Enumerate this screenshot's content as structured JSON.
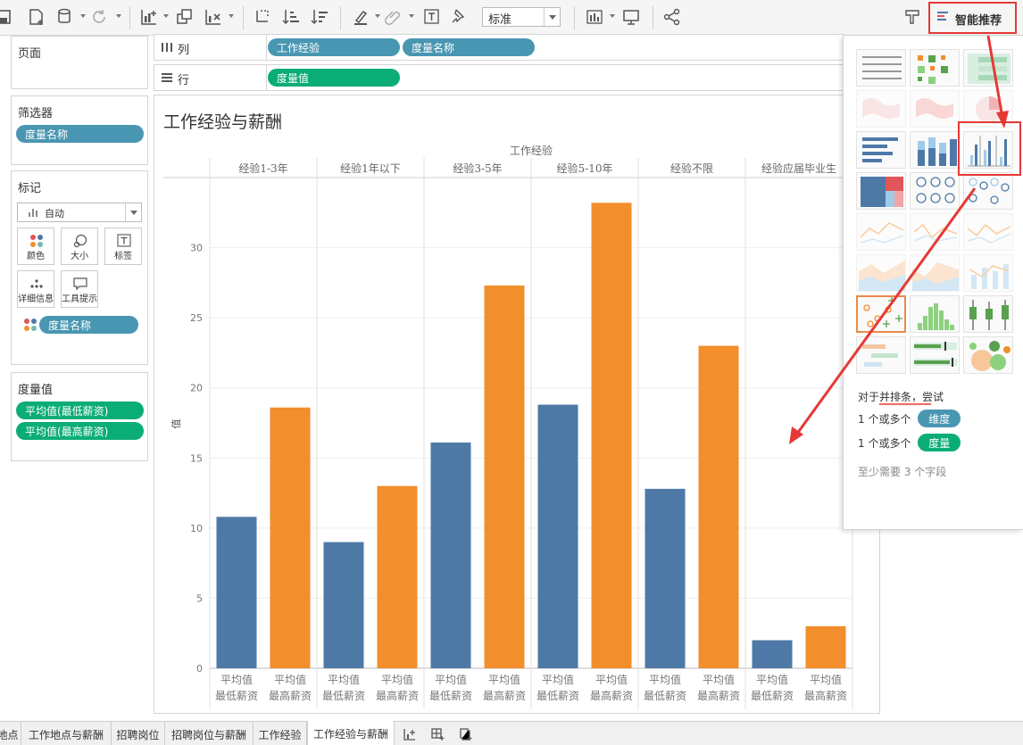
{
  "toolbar": {
    "fit_value": "标准",
    "smart_button_label": "智能推荐",
    "icons": [
      "save-icon",
      "new-datasource-icon",
      "datasource-icon",
      "refresh-icon",
      "new-worksheet-icon",
      "duplicate-icon",
      "clear-icon",
      "swap-icon",
      "sort-asc-icon",
      "sort-desc-icon",
      "highlight-icon",
      "attach-icon",
      "label-toggle-icon",
      "pin-icon",
      "fit-icon",
      "presentation-icon",
      "share-icon",
      "tooltip-icon"
    ]
  },
  "left_pane": {
    "pages": {
      "title": "页面"
    },
    "filters": {
      "title": "筛选器",
      "items": [
        "度量名称"
      ]
    },
    "marks": {
      "title": "标记",
      "type_value": "自动",
      "buttons": [
        "颜色",
        "大小",
        "标签",
        "详细信息",
        "工具提示"
      ],
      "color_field": "度量名称"
    },
    "measure_values": {
      "title": "度量值",
      "items": [
        "平均值(最低薪资)",
        "平均值(最高薪资)"
      ]
    }
  },
  "shelves": {
    "columns": {
      "label": "列",
      "pills": [
        "工作经验",
        "度量名称"
      ]
    },
    "rows": {
      "label": "行",
      "pills": [
        "度量值"
      ]
    }
  },
  "view": {
    "title": "工作经验与薪酬"
  },
  "chart_data": {
    "type": "bar",
    "column_header": "工作经验",
    "ylabel": "值",
    "ylim": [
      0,
      35
    ],
    "yticks": [
      0,
      5,
      10,
      15,
      20,
      25,
      30
    ],
    "grid": true,
    "categories": [
      "经验1-3年",
      "经验1年以下",
      "经验3-5年",
      "经验5-10年",
      "经验不限",
      "经验应届毕业生"
    ],
    "sub_labels": [
      [
        "平均值",
        "最低薪资"
      ],
      [
        "平均值",
        "最高薪资"
      ]
    ],
    "series": [
      {
        "name": "平均值 最低薪资",
        "color": "#4e79a7",
        "values": [
          10.8,
          9.0,
          16.1,
          18.8,
          12.8,
          2.0
        ]
      },
      {
        "name": "平均值 最高薪资",
        "color": "#f28e2b",
        "values": [
          18.6,
          13.0,
          27.3,
          33.2,
          23.0,
          3.0
        ]
      }
    ]
  },
  "show_me": {
    "hint_line": "对于并排条，尝试",
    "req1_prefix": "1 个或多个",
    "req1_pill": "维度",
    "req2_prefix": "1 个或多个",
    "req2_pill": "度量",
    "footer": "至少需要 3 个字段",
    "thumbnails": [
      "text-table",
      "heat-map",
      "highlight-table",
      "symbol-map",
      "filled-map",
      "pie-chart",
      "horizontal-bars",
      "stacked-bars",
      "side-by-side-bars",
      "treemap",
      "circle-views",
      "side-by-side-circles",
      "line-continuous",
      "line-discrete",
      "dual-lines",
      "area-continuous",
      "area-discrete",
      "dual-combination",
      "scatter-plot",
      "histogram",
      "box-and-whisker",
      "gantt-chart",
      "bullet-graph",
      "packed-bubbles"
    ],
    "selected": "side-by-side-bars"
  },
  "tabs": [
    "地点",
    "工作地点与薪酬",
    "招聘岗位",
    "招聘岗位与薪酬",
    "工作经验",
    "工作经验与薪酬"
  ],
  "active_tab": "工作经验与薪酬",
  "colors": {
    "accent_red": "#e53935",
    "pill_blue": "#4996b2",
    "pill_green": "#0bad76"
  }
}
